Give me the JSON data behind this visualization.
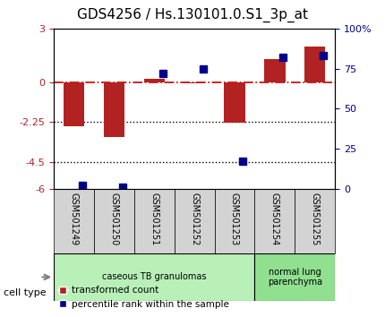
{
  "title": "GDS4256 / Hs.130101.0.S1_3p_at",
  "samples": [
    "GSM501249",
    "GSM501250",
    "GSM501251",
    "GSM501252",
    "GSM501253",
    "GSM501254",
    "GSM501255"
  ],
  "red_values": [
    -2.5,
    -3.1,
    0.2,
    -0.05,
    -2.3,
    1.3,
    2.0
  ],
  "blue_values_pct": [
    2,
    1,
    72,
    75,
    17,
    82,
    83
  ],
  "ylim_left": [
    -6,
    3
  ],
  "ylim_right": [
    0,
    100
  ],
  "yticks_left": [
    -6,
    -4.5,
    -2.25,
    0,
    3
  ],
  "ytick_labels_left": [
    "-6",
    "-4.5",
    "-2.25",
    "0",
    "3"
  ],
  "yticks_right": [
    0,
    25,
    50,
    75,
    100
  ],
  "ytick_labels_right": [
    "0",
    "25",
    "50",
    "75",
    "100%"
  ],
  "hline_y": 0,
  "dotted_lines": [
    -2.25,
    -4.5
  ],
  "red_color": "#b22222",
  "blue_color": "#00008b",
  "dashed_color": "#cc0000",
  "cell_type_groups": [
    {
      "label": "caseous TB granulomas",
      "start": 0,
      "end": 5,
      "color": "#b8f0b8"
    },
    {
      "label": "normal lung\nparenchyma",
      "start": 5,
      "end": 7,
      "color": "#90e090"
    }
  ],
  "cell_type_label": "cell type",
  "legend_red": "transformed count",
  "legend_blue": "percentile rank within the sample",
  "bar_width": 0.35,
  "blue_marker_size": 6,
  "background_color": "#ffffff"
}
